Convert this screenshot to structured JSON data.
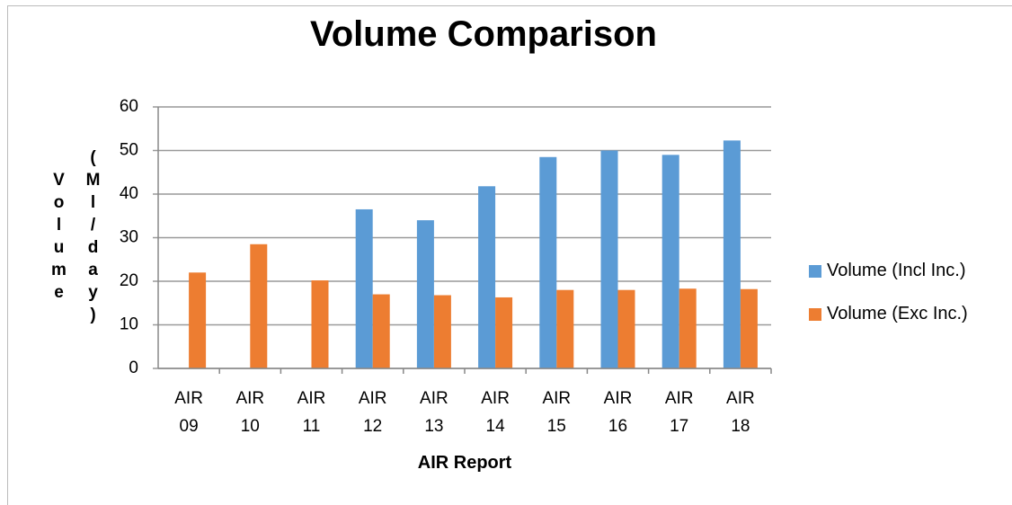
{
  "chart_data": {
    "type": "bar",
    "title": "Volume Comparison",
    "x_label": "AIR Report",
    "y_label": "Volume (Ml/day)",
    "categories": [
      "AIR 09",
      "AIR 10",
      "AIR 11",
      "AIR 12",
      "AIR 13",
      "AIR 14",
      "AIR 15",
      "AIR 16",
      "AIR 17",
      "AIR 18"
    ],
    "series": [
      {
        "name": "Volume (Incl Inc.)",
        "color": "#5b9bd5",
        "values": [
          null,
          null,
          null,
          36.5,
          34,
          41.8,
          48.5,
          50,
          49,
          52.3
        ]
      },
      {
        "name": "Volume (Exc Inc.)",
        "color": "#ed7d31",
        "values": [
          22,
          28.5,
          20.2,
          17,
          16.8,
          16.3,
          18,
          18,
          18.3,
          18.2
        ]
      }
    ],
    "ylim": [
      0,
      60
    ],
    "yticks": [
      0,
      10,
      20,
      30,
      40,
      50,
      60
    ],
    "grid": true,
    "legend": "right"
  }
}
